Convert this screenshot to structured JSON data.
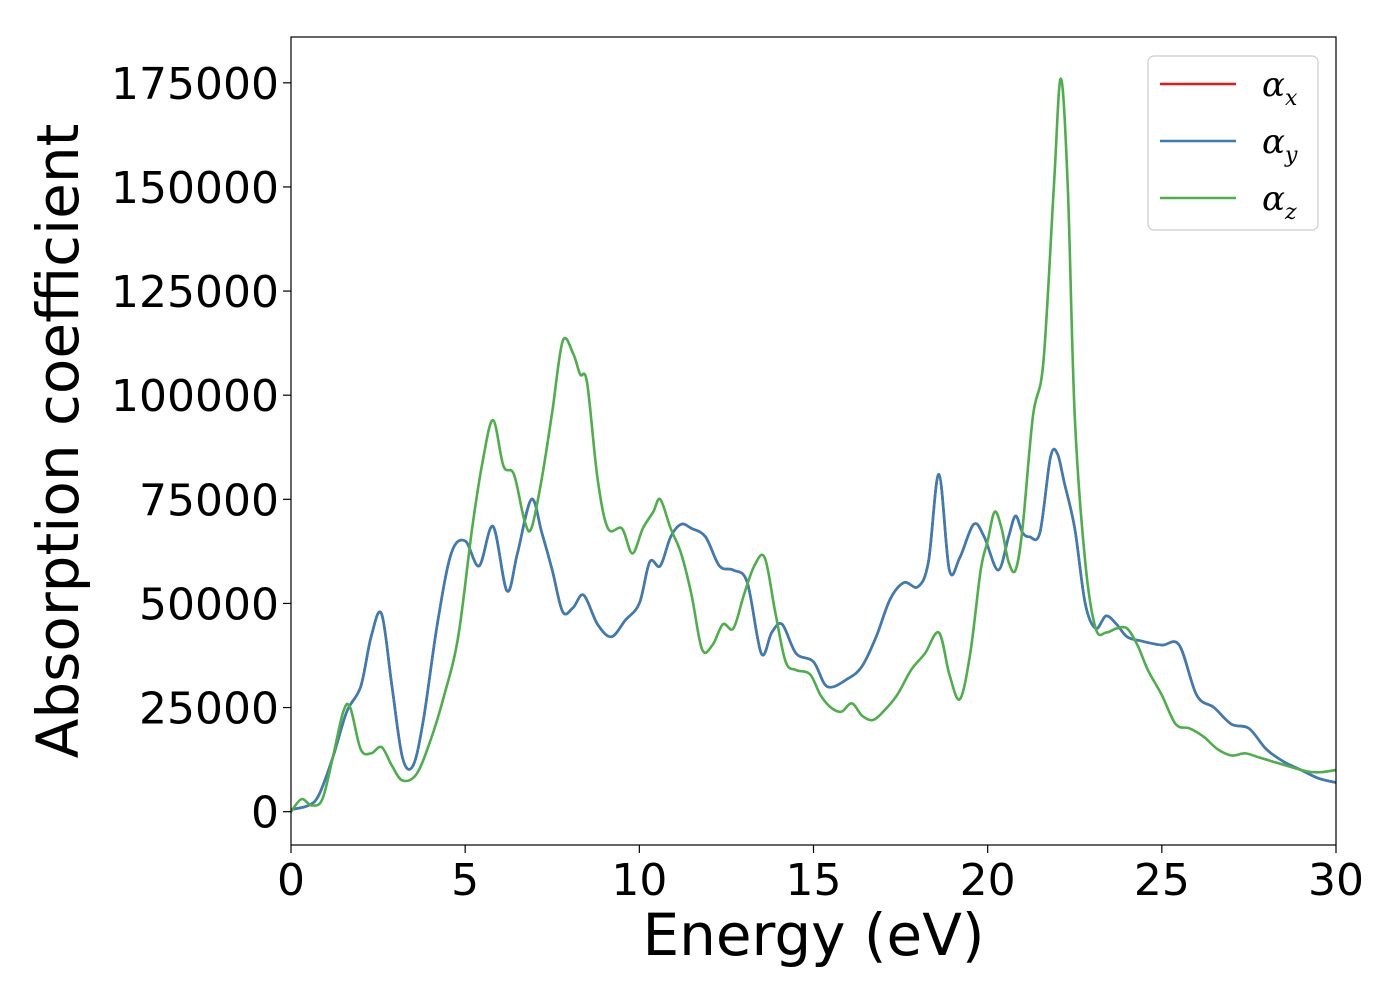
{
  "chart_data": {
    "type": "line",
    "xlabel": "Energy (eV)",
    "ylabel": "Absorption coefficient",
    "xlim": [
      0,
      30
    ],
    "ylim": [
      -8000,
      186000
    ],
    "xticks": [
      0,
      5,
      10,
      15,
      20,
      25,
      30
    ],
    "xtick_labels": [
      "0",
      "5",
      "10",
      "15",
      "20",
      "25",
      "30"
    ],
    "yticks": [
      0,
      25000,
      50000,
      75000,
      100000,
      125000,
      150000,
      175000
    ],
    "ytick_labels": [
      "0",
      "25000",
      "50000",
      "75000",
      "100000",
      "125000",
      "150000",
      "175000"
    ],
    "grid": false,
    "legend_position": "top-right",
    "series": [
      {
        "name": "α_x",
        "name_base": "α",
        "name_sub": "x",
        "color": "#e41a1c",
        "x": [
          0,
          0.5,
          0.8,
          1.2,
          1.6,
          2.0,
          2.3,
          2.6,
          2.9,
          3.2,
          3.5,
          3.8,
          4.2,
          4.6,
          5.0,
          5.4,
          5.8,
          6.2,
          6.5,
          6.9,
          7.2,
          7.5,
          7.8,
          8.1,
          8.4,
          8.8,
          9.2,
          9.6,
          10.0,
          10.3,
          10.6,
          10.9,
          11.2,
          11.5,
          11.9,
          12.3,
          12.7,
          13.1,
          13.5,
          13.8,
          14.1,
          14.5,
          15.0,
          15.4,
          16.0,
          16.4,
          16.8,
          17.2,
          17.6,
          18.0,
          18.3,
          18.6,
          18.9,
          19.2,
          19.6,
          19.9,
          20.3,
          20.6,
          20.8,
          21.0,
          21.2,
          21.5,
          21.8,
          22.0,
          22.2,
          22.5,
          22.8,
          23.1,
          23.4,
          23.7,
          24.0,
          24.4,
          25.0,
          25.5,
          26.0,
          26.5,
          27.0,
          27.5,
          28.0,
          28.5,
          29.0,
          29.5,
          30.0
        ],
        "values": [
          500,
          1500,
          4000,
          13000,
          24000,
          30000,
          42000,
          47500,
          30000,
          13000,
          11000,
          22000,
          45000,
          62000,
          65000,
          59000,
          68500,
          53000,
          62000,
          75000,
          67000,
          58000,
          48000,
          49000,
          52000,
          45000,
          42000,
          46000,
          50000,
          60000,
          59000,
          66000,
          69000,
          68000,
          66000,
          59000,
          58000,
          55000,
          38000,
          43000,
          45000,
          38000,
          36000,
          30000,
          32000,
          35000,
          42000,
          51000,
          55000,
          54000,
          60000,
          81000,
          58000,
          61000,
          69000,
          66000,
          58000,
          66000,
          71000,
          67000,
          66000,
          67000,
          85000,
          86000,
          79000,
          68000,
          50000,
          44000,
          47000,
          45000,
          42000,
          41000,
          40000,
          40000,
          28000,
          25000,
          21000,
          20000,
          15000,
          12000,
          10000,
          8000,
          7000
        ]
      },
      {
        "name": "α_y",
        "name_base": "α",
        "name_sub": "y",
        "color": "#377eb8",
        "x": [
          0,
          0.5,
          0.8,
          1.2,
          1.6,
          2.0,
          2.3,
          2.6,
          2.9,
          3.2,
          3.5,
          3.8,
          4.2,
          4.6,
          5.0,
          5.4,
          5.8,
          6.2,
          6.5,
          6.9,
          7.2,
          7.5,
          7.8,
          8.1,
          8.4,
          8.8,
          9.2,
          9.6,
          10.0,
          10.3,
          10.6,
          10.9,
          11.2,
          11.5,
          11.9,
          12.3,
          12.7,
          13.1,
          13.5,
          13.8,
          14.1,
          14.5,
          15.0,
          15.4,
          16.0,
          16.4,
          16.8,
          17.2,
          17.6,
          18.0,
          18.3,
          18.6,
          18.9,
          19.2,
          19.6,
          19.9,
          20.3,
          20.6,
          20.8,
          21.0,
          21.2,
          21.5,
          21.8,
          22.0,
          22.2,
          22.5,
          22.8,
          23.1,
          23.4,
          23.7,
          24.0,
          24.4,
          25.0,
          25.5,
          26.0,
          26.5,
          27.0,
          27.5,
          28.0,
          28.5,
          29.0,
          29.5,
          30.0
        ],
        "values": [
          500,
          1500,
          4000,
          13000,
          24000,
          30000,
          42000,
          47500,
          30000,
          13000,
          11000,
          22000,
          45000,
          62000,
          65000,
          59000,
          68500,
          53000,
          62000,
          75000,
          67000,
          58000,
          48000,
          49000,
          52000,
          45000,
          42000,
          46000,
          50000,
          60000,
          59000,
          66000,
          69000,
          68000,
          66000,
          59000,
          58000,
          55000,
          38000,
          43000,
          45000,
          38000,
          36000,
          30000,
          32000,
          35000,
          42000,
          51000,
          55000,
          54000,
          60000,
          81000,
          58000,
          61000,
          69000,
          66000,
          58000,
          66000,
          71000,
          67000,
          66000,
          67000,
          85000,
          86000,
          79000,
          68000,
          50000,
          44000,
          47000,
          45000,
          42000,
          41000,
          40000,
          40000,
          28000,
          25000,
          21000,
          20000,
          15000,
          12000,
          10000,
          8000,
          7000
        ]
      },
      {
        "name": "α_z",
        "name_base": "α",
        "name_sub": "z",
        "color": "#4daf4a",
        "x": [
          0,
          0.3,
          0.6,
          0.9,
          1.2,
          1.5,
          1.7,
          2.0,
          2.3,
          2.6,
          2.9,
          3.2,
          3.6,
          4.0,
          4.4,
          4.8,
          5.2,
          5.5,
          5.8,
          6.1,
          6.4,
          6.7,
          6.9,
          7.2,
          7.5,
          7.8,
          8.1,
          8.3,
          8.5,
          8.8,
          9.1,
          9.5,
          9.8,
          10.1,
          10.4,
          10.6,
          10.9,
          11.2,
          11.5,
          11.8,
          12.1,
          12.4,
          12.7,
          13.0,
          13.3,
          13.6,
          13.9,
          14.2,
          14.5,
          14.9,
          15.2,
          15.5,
          15.8,
          16.1,
          16.4,
          16.7,
          17.0,
          17.4,
          17.8,
          18.2,
          18.6,
          18.9,
          19.2,
          19.5,
          19.8,
          20.0,
          20.2,
          20.4,
          20.6,
          20.8,
          21.0,
          21.3,
          21.6,
          21.9,
          22.1,
          22.3,
          22.5,
          22.8,
          23.1,
          23.4,
          23.7,
          24.0,
          24.3,
          24.6,
          25.0,
          25.4,
          25.8,
          26.2,
          26.6,
          27.0,
          27.4,
          27.8,
          28.2,
          28.6,
          29.0,
          29.3,
          29.6,
          30.0
        ],
        "values": [
          0,
          3000,
          1500,
          3000,
          13000,
          24000,
          25000,
          15000,
          14000,
          15500,
          11000,
          7500,
          9000,
          17000,
          28000,
          42000,
          68000,
          84000,
          94000,
          83000,
          81000,
          70000,
          68000,
          80000,
          96000,
          113000,
          110000,
          105000,
          103000,
          80000,
          68000,
          68000,
          62000,
          68000,
          72000,
          75000,
          68000,
          62000,
          52000,
          39000,
          40000,
          45000,
          44000,
          52000,
          59000,
          61000,
          48000,
          36000,
          34000,
          33000,
          28000,
          25000,
          24000,
          26000,
          23000,
          22000,
          24000,
          28000,
          34000,
          38000,
          43000,
          33000,
          27000,
          38000,
          58000,
          65000,
          72000,
          68000,
          60000,
          58000,
          68000,
          95000,
          108000,
          150000,
          176000,
          150000,
          95000,
          60000,
          44000,
          43000,
          44000,
          44000,
          40000,
          34000,
          28000,
          21000,
          20000,
          18000,
          15000,
          13500,
          14000,
          13000,
          12000,
          11000,
          10000,
          9500,
          9500,
          10000
        ]
      }
    ]
  }
}
